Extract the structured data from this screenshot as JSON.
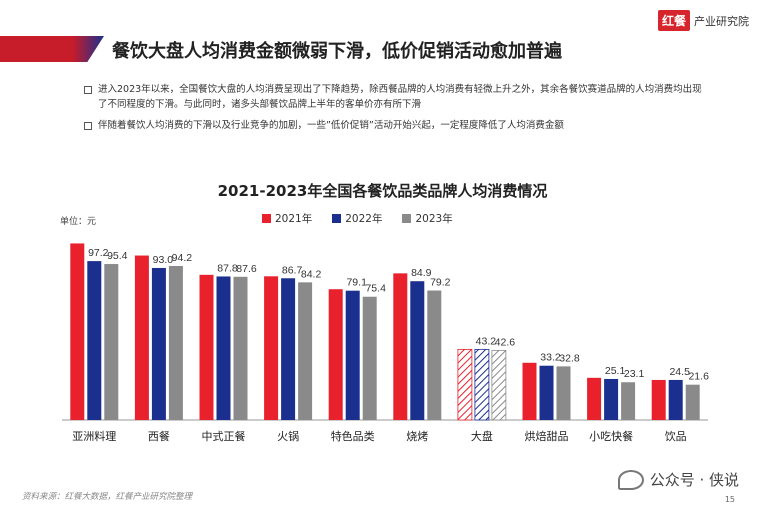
{
  "header": {
    "logo_mark": "红餐",
    "logo_text": "产业研究院",
    "title": "餐饮大盘人均消费金额微弱下滑，低价促销活动愈加普遍"
  },
  "bullets": [
    "进入2023年以来，全国餐饮大盘的人均消费呈现出了下降趋势，除西餐品牌的人均消费有轻微上升之外，其余各餐饮赛道品牌的人均消费均出现了不同程度的下滑。与此同时，诸多头部餐饮品牌上半年的客单价亦有所下滑",
    "伴随着餐饮人均消费的下滑以及行业竞争的加剧，一些”低价促销”活动开始兴起，一定程度降低了人均消费金额"
  ],
  "chart_data": {
    "type": "bar",
    "title": "2021-2023年全国各餐饮品类品牌人均消费情况",
    "unit_label": "单位：元",
    "categories": [
      "亚洲料理",
      "西餐",
      "中式正餐",
      "火锅",
      "特色品类",
      "烧烤",
      "大盘",
      "烘焙甜品",
      "小吃快餐",
      "饮品"
    ],
    "series": [
      {
        "name": "2021年",
        "color": "#e8212d",
        "values": [
          108.0,
          100.6,
          88.8,
          87.9,
          80.0,
          89.7,
          43.2,
          35.0,
          25.8,
          24.5
        ]
      },
      {
        "name": "2022年",
        "color": "#1b2f8f",
        "values": [
          97.2,
          93.0,
          87.8,
          86.7,
          79.1,
          84.9,
          43.2,
          33.2,
          25.1,
          24.5
        ]
      },
      {
        "name": "2023年",
        "color": "#8a8a8a",
        "values": [
          95.4,
          94.2,
          87.6,
          84.2,
          75.4,
          79.2,
          42.6,
          32.8,
          23.1,
          21.6
        ]
      }
    ],
    "labels": {
      "2021年": [
        "",
        "",
        "",
        "",
        "",
        "",
        "",
        "",
        "",
        ""
      ],
      "2022年": [
        "97.2",
        "93.0",
        "87.8",
        "86.7",
        "79.1",
        "84.9",
        "43.2",
        "33.2",
        "25.1",
        "24.5"
      ],
      "2023年": [
        "95.4",
        "94.2",
        "87.6",
        "84.2",
        "75.4",
        "79.2",
        "42.6",
        "32.8",
        "23.1",
        "21.6"
      ]
    },
    "highlight_category": "大盘",
    "ylim": [
      0,
      115
    ],
    "grid": false
  },
  "footer": {
    "source": "资料来源：红餐大数据，红餐产业研究院整理",
    "brand": "公众号 · 侠说",
    "page_number": "15"
  }
}
